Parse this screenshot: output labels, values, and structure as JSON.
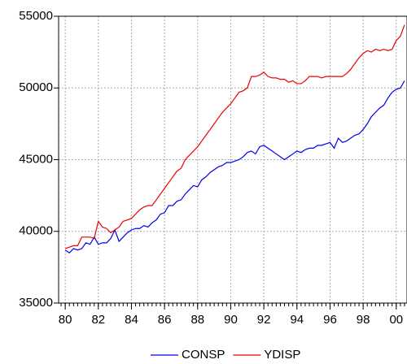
{
  "chart_data": {
    "type": "line",
    "x": [
      1980,
      1980.25,
      1980.5,
      1980.75,
      1981,
      1981.25,
      1981.5,
      1981.75,
      1982,
      1982.25,
      1982.5,
      1982.75,
      1983,
      1983.25,
      1983.5,
      1983.75,
      1984,
      1984.25,
      1984.5,
      1984.75,
      1985,
      1985.25,
      1985.5,
      1985.75,
      1986,
      1986.25,
      1986.5,
      1986.75,
      1987,
      1987.25,
      1987.5,
      1987.75,
      1988,
      1988.25,
      1988.5,
      1988.75,
      1989,
      1989.25,
      1989.5,
      1989.75,
      1990,
      1990.25,
      1990.5,
      1990.75,
      1991,
      1991.25,
      1991.5,
      1991.75,
      1992,
      1992.25,
      1992.5,
      1992.75,
      1993,
      1993.25,
      1993.5,
      1993.75,
      1994,
      1994.25,
      1994.5,
      1994.75,
      1995,
      1995.25,
      1995.5,
      1995.75,
      1996,
      1996.25,
      1996.5,
      1996.75,
      1997,
      1997.25,
      1997.5,
      1997.75,
      1998,
      1998.25,
      1998.5,
      1998.75,
      1999,
      1999.25,
      1999.5,
      1999.75,
      2000,
      2000.25,
      2000.5
    ],
    "series": [
      {
        "name": "CONSP",
        "color": "#0000ee",
        "values": [
          38700,
          38500,
          38800,
          38700,
          38800,
          39200,
          39100,
          39600,
          39100,
          39200,
          39200,
          39500,
          40100,
          39300,
          39600,
          39900,
          40100,
          40200,
          40200,
          40400,
          40300,
          40600,
          40800,
          41200,
          41300,
          41800,
          41800,
          42100,
          42200,
          42600,
          42900,
          43200,
          43100,
          43600,
          43800,
          44100,
          44300,
          44500,
          44600,
          44800,
          44800,
          44900,
          45000,
          45200,
          45500,
          45600,
          45400,
          45900,
          46000,
          45800,
          45600,
          45400,
          45200,
          45000,
          45200,
          45400,
          45600,
          45500,
          45700,
          45800,
          45800,
          46000,
          46000,
          46100,
          46200,
          45800,
          46500,
          46200,
          46300,
          46500,
          46700,
          46800,
          47100,
          47500,
          48000,
          48300,
          48600,
          48800,
          49300,
          49700,
          49900,
          50000,
          50500
        ]
      },
      {
        "name": "YDISP",
        "color": "#ee0000",
        "values": [
          38800,
          38900,
          39000,
          39000,
          39600,
          39600,
          39600,
          39500,
          40700,
          40300,
          40200,
          39900,
          40100,
          40300,
          40700,
          40800,
          40900,
          41200,
          41500,
          41700,
          41800,
          41800,
          42200,
          42600,
          43000,
          43400,
          43800,
          44200,
          44400,
          45000,
          45300,
          45600,
          45900,
          46300,
          46700,
          47100,
          47500,
          47900,
          48300,
          48600,
          48900,
          49300,
          49700,
          49800,
          50000,
          50800,
          50800,
          50900,
          51100,
          50800,
          50700,
          50700,
          50600,
          50600,
          50400,
          50500,
          50300,
          50300,
          50500,
          50800,
          50800,
          50800,
          50700,
          50800,
          50800,
          50800,
          50800,
          50800,
          51000,
          51300,
          51700,
          52100,
          52400,
          52600,
          52500,
          52700,
          52600,
          52700,
          52600,
          52700,
          53300,
          53600,
          54400
        ]
      }
    ],
    "xlim": [
      1979.6,
      2000.65
    ],
    "xticks": [
      {
        "value": 1980,
        "label": "80"
      },
      {
        "value": 1982,
        "label": "82"
      },
      {
        "value": 1984,
        "label": "84"
      },
      {
        "value": 1986,
        "label": "86"
      },
      {
        "value": 1988,
        "label": "88"
      },
      {
        "value": 1990,
        "label": "90"
      },
      {
        "value": 1992,
        "label": "92"
      },
      {
        "value": 1994,
        "label": "94"
      },
      {
        "value": 1996,
        "label": "96"
      },
      {
        "value": 1998,
        "label": "98"
      },
      {
        "value": 2000,
        "label": "00"
      }
    ],
    "ylim": [
      35000,
      55000
    ],
    "yticks": [
      35000,
      40000,
      45000,
      50000,
      55000
    ],
    "grid": true,
    "legend": "bottom"
  }
}
